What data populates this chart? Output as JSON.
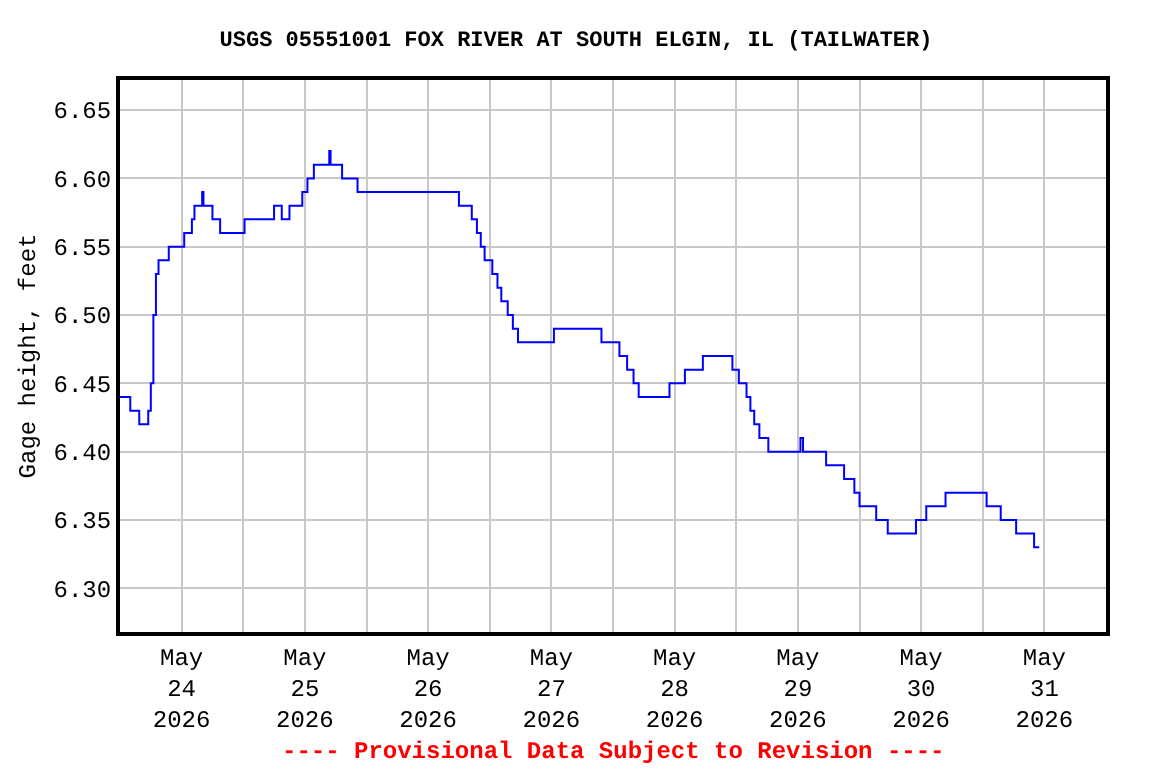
{
  "chart_data": {
    "type": "step",
    "title": "USGS 05551001 FOX RIVER AT SOUTH ELGIN, IL (TAILWATER)",
    "ylabel": "Gage height, feet",
    "annotations": [
      "---- Provisional Data Subject to Revision ----"
    ],
    "x": [
      "2026-05-23T12:00",
      "2026-05-23T14:00",
      "2026-05-23T15:45",
      "2026-05-23T17:30",
      "2026-05-23T18:00",
      "2026-05-23T18:30",
      "2026-05-23T19:00",
      "2026-05-23T19:30",
      "2026-05-23T21:30",
      "2026-05-24T00:30",
      "2026-05-24T02:00",
      "2026-05-24T02:30",
      "2026-05-24T04:00",
      "2026-05-24T04:15",
      "2026-05-24T06:00",
      "2026-05-24T07:30",
      "2026-05-24T12:15",
      "2026-05-24T18:00",
      "2026-05-24T19:30",
      "2026-05-24T21:00",
      "2026-05-24T23:30",
      "2026-05-25T00:30",
      "2026-05-25T01:45",
      "2026-05-25T04:45",
      "2026-05-25T05:00",
      "2026-05-25T07:15",
      "2026-05-25T10:15",
      "2026-05-26T06:00",
      "2026-05-26T08:30",
      "2026-05-26T09:30",
      "2026-05-26T10:15",
      "2026-05-26T11:00",
      "2026-05-26T12:30",
      "2026-05-26T13:30",
      "2026-05-26T14:15",
      "2026-05-26T15:30",
      "2026-05-26T16:30",
      "2026-05-26T17:30",
      "2026-05-27T00:30",
      "2026-05-27T09:45",
      "2026-05-27T13:15",
      "2026-05-27T14:45",
      "2026-05-27T16:00",
      "2026-05-27T17:00",
      "2026-05-27T23:00",
      "2026-05-28T02:00",
      "2026-05-28T05:30",
      "2026-05-28T11:15",
      "2026-05-28T12:30",
      "2026-05-28T14:00",
      "2026-05-28T14:45",
      "2026-05-28T15:30",
      "2026-05-28T16:30",
      "2026-05-28T18:15",
      "2026-05-29T00:30",
      "2026-05-29T01:00",
      "2026-05-29T05:30",
      "2026-05-29T09:00",
      "2026-05-29T11:00",
      "2026-05-29T12:00",
      "2026-05-29T15:15",
      "2026-05-29T17:30",
      "2026-05-29T23:00",
      "2026-05-30T01:00",
      "2026-05-30T04:45",
      "2026-05-30T12:45",
      "2026-05-30T15:30",
      "2026-05-30T18:30",
      "2026-05-30T22:00",
      "2026-05-30T23:00"
    ],
    "series": [
      {
        "color": "#0000ff",
        "values": [
          6.44,
          6.43,
          6.42,
          6.43,
          6.45,
          6.5,
          6.53,
          6.54,
          6.55,
          6.56,
          6.57,
          6.58,
          6.59,
          6.58,
          6.57,
          6.56,
          6.57,
          6.58,
          6.57,
          6.58,
          6.59,
          6.6,
          6.61,
          6.62,
          6.61,
          6.6,
          6.59,
          6.58,
          6.57,
          6.56,
          6.55,
          6.54,
          6.53,
          6.52,
          6.51,
          6.5,
          6.49,
          6.48,
          6.49,
          6.48,
          6.47,
          6.46,
          6.45,
          6.44,
          6.45,
          6.46,
          6.47,
          6.46,
          6.45,
          6.44,
          6.43,
          6.42,
          6.41,
          6.4,
          6.41,
          6.4,
          6.39,
          6.38,
          6.37,
          6.36,
          6.35,
          6.34,
          6.35,
          6.36,
          6.37,
          6.36,
          6.35,
          6.34,
          6.33,
          6.33
        ]
      }
    ],
    "xlim": [
      "2026-05-23T12:00",
      "2026-05-31T12:00"
    ],
    "xticks": [
      {
        "value": "2026-05-24",
        "label": "May\n24\n2026"
      },
      {
        "value": "2026-05-24T12:00",
        "label": null
      },
      {
        "value": "2026-05-25",
        "label": "May\n25\n2026"
      },
      {
        "value": "2026-05-25T12:00",
        "label": null
      },
      {
        "value": "2026-05-26",
        "label": "May\n26\n2026"
      },
      {
        "value": "2026-05-26T12:00",
        "label": null
      },
      {
        "value": "2026-05-27",
        "label": "May\n27\n2026"
      },
      {
        "value": "2026-05-27T12:00",
        "label": null
      },
      {
        "value": "2026-05-28",
        "label": "May\n28\n2026"
      },
      {
        "value": "2026-05-28T12:00",
        "label": null
      },
      {
        "value": "2026-05-29",
        "label": "May\n29\n2026"
      },
      {
        "value": "2026-05-29T12:00",
        "label": null
      },
      {
        "value": "2026-05-30",
        "label": "May\n30\n2026"
      },
      {
        "value": "2026-05-30T12:00",
        "label": null
      },
      {
        "value": "2026-05-31",
        "label": "May\n31\n2026"
      }
    ],
    "ylim": [
      6.268,
      6.672
    ],
    "yticks": [
      {
        "value": 6.3,
        "label": "6.30"
      },
      {
        "value": 6.35,
        "label": "6.35"
      },
      {
        "value": 6.4,
        "label": "6.40"
      },
      {
        "value": 6.45,
        "label": "6.45"
      },
      {
        "value": 6.5,
        "label": "6.50"
      },
      {
        "value": 6.55,
        "label": "6.55"
      },
      {
        "value": 6.6,
        "label": "6.60"
      },
      {
        "value": 6.65,
        "label": "6.65"
      }
    ],
    "grid": true,
    "marker": "none",
    "line_style": "solid"
  }
}
